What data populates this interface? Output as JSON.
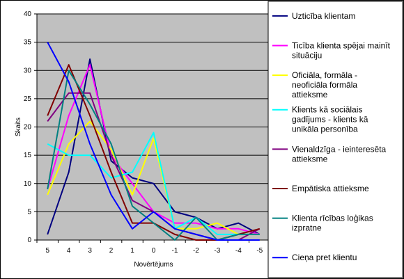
{
  "chart_data": {
    "type": "line",
    "title": "",
    "xlabel": "Novērtējums",
    "ylabel": "Skaits",
    "x": [
      "5",
      "4",
      "3",
      "2",
      "1",
      "0",
      "-1",
      "-2",
      "-3",
      "-4",
      "-5"
    ],
    "ylim": [
      0,
      40
    ],
    "yticks": [
      "0",
      "5",
      "10",
      "15",
      "20",
      "25",
      "30",
      "35",
      "40"
    ],
    "grid": true,
    "plot_background": "#c0c0c0",
    "legend_position": "right",
    "series": [
      {
        "name": "Uzticība klientam",
        "color": "#000080",
        "values": [
          1,
          12,
          32,
          14,
          11,
          10,
          5,
          4,
          2,
          3,
          1
        ]
      },
      {
        "name": "Ticība klienta spējai mainīt situāciju",
        "color": "#ff00ff",
        "values": [
          9,
          22,
          31,
          15,
          10,
          5,
          3,
          3,
          2,
          2,
          1
        ]
      },
      {
        "name": "Oficiāla, formāla - neoficiāla formāla attieksme",
        "color": "#ffff00",
        "values": [
          8,
          17,
          21,
          16,
          8,
          18,
          2,
          2,
          3,
          1,
          1
        ]
      },
      {
        "name": "Klients kā sociālais gadījums - klients kā unikāla personība",
        "color": "#00ffff",
        "values": [
          17,
          15,
          15,
          11,
          12,
          19,
          2,
          4,
          1,
          1,
          1
        ]
      },
      {
        "name": "Vienaldzīga - ieinteresēta attieksme",
        "color": "#800080",
        "values": [
          21,
          26,
          26,
          15,
          7,
          5,
          2,
          1,
          0,
          0,
          2
        ]
      },
      {
        "name": "Empātiska attieksme",
        "color": "#800000",
        "values": [
          22,
          31,
          22,
          12,
          3,
          3,
          1,
          0,
          0,
          1,
          2
        ]
      },
      {
        "name": "Klienta rīcības loģikas izpratne",
        "color": "#008080",
        "values": [
          9,
          30,
          24,
          17,
          6,
          3,
          0,
          4,
          0,
          1,
          1
        ]
      },
      {
        "name": "Cieņa pret klientu",
        "color": "#0000ff",
        "values": [
          35,
          28,
          17,
          8,
          2,
          5,
          2,
          1,
          0,
          0,
          0
        ]
      }
    ]
  }
}
